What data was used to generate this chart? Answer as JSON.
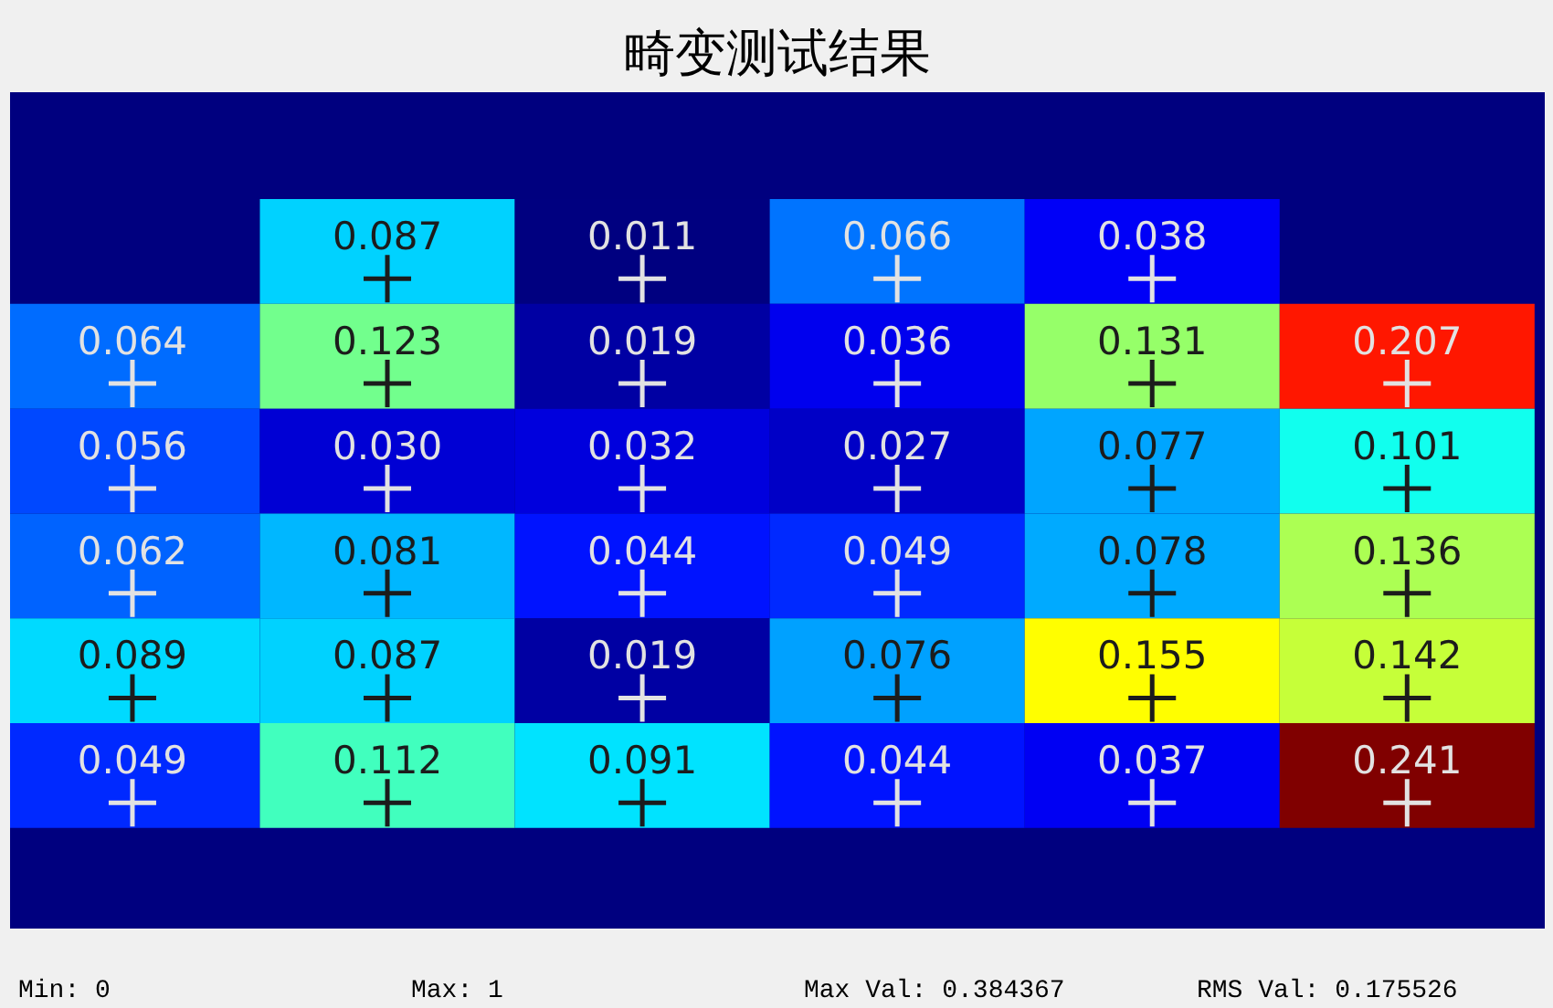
{
  "chart_data": {
    "type": "heatmap",
    "title": "畸变测试结果",
    "categories": [
      null,
      null,
      null,
      null,
      null,
      null
    ],
    "y_categories": [
      null,
      null,
      null,
      null,
      null,
      null
    ],
    "cells": [
      [
        null,
        0.087,
        0.011,
        0.066,
        0.038,
        null
      ],
      [
        0.064,
        0.123,
        0.019,
        0.036,
        0.131,
        0.207
      ],
      [
        0.056,
        0.03,
        0.032,
        0.027,
        0.077,
        0.101
      ],
      [
        0.062,
        0.081,
        0.044,
        0.049,
        0.078,
        0.136
      ],
      [
        0.089,
        0.087,
        0.019,
        0.076,
        0.155,
        0.142
      ],
      [
        0.049,
        0.112,
        0.091,
        0.044,
        0.037,
        0.241
      ]
    ],
    "cell_labels": [
      [
        null,
        "0.087",
        "0.011",
        "0.066",
        "0.038",
        null
      ],
      [
        "0.064",
        "0.123",
        "0.019",
        "0.036",
        "0.131",
        "0.207"
      ],
      [
        "0.056",
        "0.030",
        "0.032",
        "0.027",
        "0.077",
        "0.101"
      ],
      [
        "0.062",
        "0.081",
        "0.044",
        "0.049",
        "0.078",
        "0.136"
      ],
      [
        "0.089",
        "0.087",
        "0.019",
        "0.076",
        "0.155",
        "0.142"
      ],
      [
        "0.049",
        "0.112",
        "0.091",
        "0.044",
        "0.037",
        "0.241"
      ]
    ],
    "marker": "cross",
    "tick_labels": false,
    "annotations": [
      "Min: 0",
      "Max: 1",
      "Max Val: 0.384367",
      "RMS Val: 0.175526"
    ]
  }
}
